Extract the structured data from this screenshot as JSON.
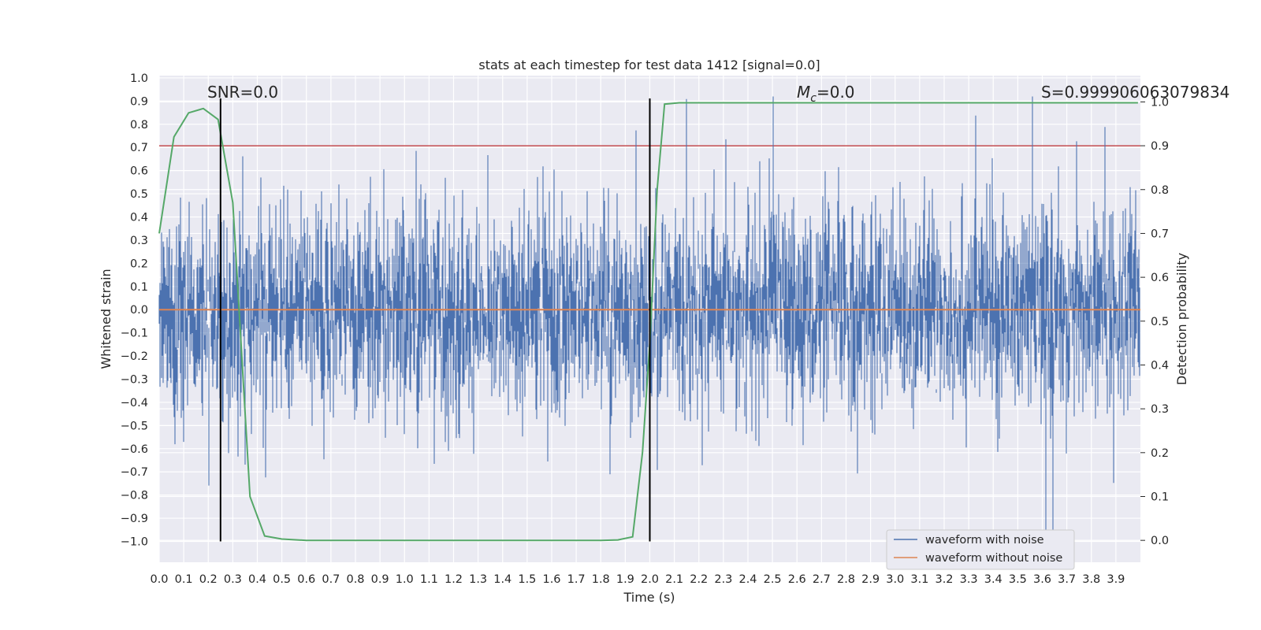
{
  "chart_data": {
    "type": "line",
    "title": "stats at each timestep for test data 1412 [signal=0.0]",
    "xlabel": "Time (s)",
    "ylabel_left": "Whitened strain",
    "ylabel_right": "Detection probability",
    "xlim": [
      0.0,
      4.0
    ],
    "ylim_left": [
      -1.09,
      1.01
    ],
    "ylim_right": [
      -0.05,
      1.06
    ],
    "x_ticks": [
      "0.0",
      "0.1",
      "0.2",
      "0.3",
      "0.4",
      "0.5",
      "0.6",
      "0.7",
      "0.8",
      "0.9",
      "1.0",
      "1.1",
      "1.2",
      "1.3",
      "1.4",
      "1.5",
      "1.6",
      "1.7",
      "1.8",
      "1.9",
      "2.0",
      "2.1",
      "2.2",
      "2.3",
      "2.4",
      "2.5",
      "2.6",
      "2.7",
      "2.8",
      "2.9",
      "3.0",
      "3.1",
      "3.2",
      "3.3",
      "3.4",
      "3.5",
      "3.6",
      "3.7",
      "3.8",
      "3.9"
    ],
    "y_ticks_left": [
      "1.0",
      "0.9",
      "0.8",
      "0.7",
      "0.6",
      "0.5",
      "0.4",
      "0.3",
      "0.2",
      "0.1",
      "0.0",
      "−0.1",
      "−0.2",
      "−0.3",
      "−0.4",
      "−0.5",
      "−0.6",
      "−0.7",
      "−0.8",
      "−0.9",
      "−1.0"
    ],
    "y_ticks_right": [
      "1.0",
      "0.9",
      "0.8",
      "0.7",
      "0.6",
      "0.5",
      "0.4",
      "0.3",
      "0.2",
      "0.1",
      "0.0"
    ],
    "grid": true,
    "background": "#eaeaf2",
    "annotations": [
      {
        "id": "snr",
        "text": "SNR=0.0",
        "x": 0.2
      },
      {
        "id": "mc",
        "text": "=0.0",
        "prefix": "M",
        "sub": "c",
        "x": 2.6
      },
      {
        "id": "s",
        "text": "S=0.999906063079834",
        "x": 3.6
      }
    ],
    "vlines": [
      0.25,
      2.0
    ],
    "threshold_prob": 0.9,
    "series": [
      {
        "name": "waveform with noise",
        "color": "#4c72b0",
        "note": "noise series of ~8000 samples; amplitude roughly within [-1.0, 0.92]",
        "amplitude_std": 0.22,
        "y_min": -1.0,
        "y_max": 0.92
      },
      {
        "name": "waveform without noise",
        "color": "#dd8452",
        "y_constant": 0.0
      },
      {
        "name": "",
        "color": "#55a868",
        "axis": "right",
        "x": [
          0.0,
          0.06,
          0.12,
          0.18,
          0.24,
          0.3,
          0.37,
          0.43,
          0.5,
          0.6,
          0.8,
          1.0,
          1.2,
          1.4,
          1.6,
          1.8,
          1.87,
          1.93,
          1.97,
          2.0,
          2.03,
          2.06,
          2.12,
          2.5,
          3.0,
          3.5,
          3.99
        ],
        "y": [
          0.7,
          0.92,
          0.975,
          0.985,
          0.96,
          0.77,
          0.1,
          0.01,
          0.003,
          0.0,
          0.0,
          0.0,
          0.0,
          0.0,
          0.0,
          0.0,
          0.001,
          0.008,
          0.2,
          0.45,
          0.8,
          0.995,
          0.998,
          0.998,
          0.998,
          0.998,
          0.998
        ]
      },
      {
        "name": "threshold",
        "color": "#c44e52",
        "axis": "right",
        "y_constant": 0.9
      }
    ],
    "legend": {
      "position": "lower-right",
      "entries": [
        {
          "label": "waveform with noise",
          "color": "#4c72b0"
        },
        {
          "label": "waveform without noise",
          "color": "#dd8452"
        }
      ]
    }
  }
}
